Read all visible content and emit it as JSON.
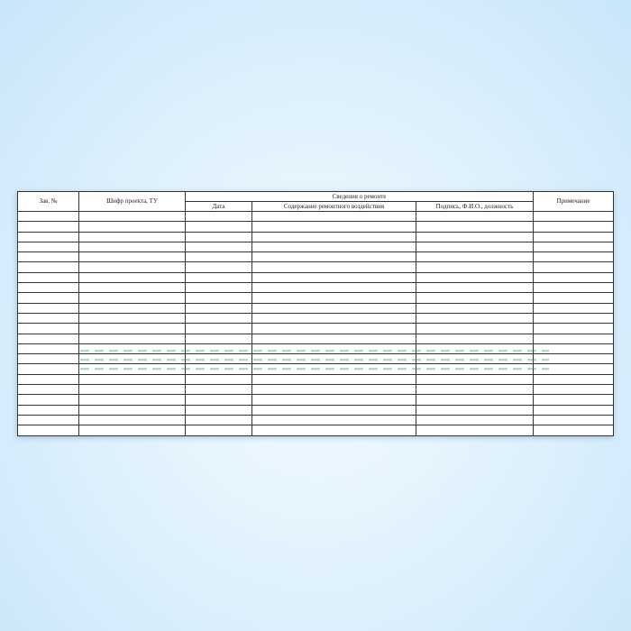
{
  "table": {
    "headers": {
      "col1": "Зав. №",
      "col2": "Шифр проекта, ТУ",
      "group": "Сведения о ремонте",
      "sub1": "Дата",
      "sub2": "Содержание ремонтного воздействия",
      "sub3": "Подпись, Ф.И.О., должность",
      "col6": "Примечание"
    },
    "empty_rows": 22
  },
  "watermark": {
    "color": "#1a9a4a"
  }
}
